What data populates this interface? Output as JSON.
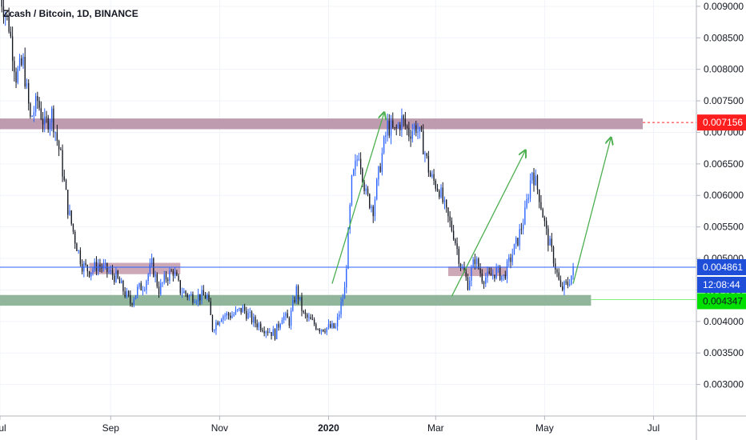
{
  "header": {
    "symbol_title": "Zcash / Bitcoin, 1D, BINANCE"
  },
  "colors": {
    "up": "#2962ff",
    "down": "#131722",
    "resistance_zone": "#b48aa2",
    "support_zone": "#7fa98a",
    "mid_zone": "#c49aaa",
    "price_line": "#2962ff",
    "red_badge": "#ff1e1e",
    "blue_badge": "#1f4fd8",
    "green_badge": "#00e000",
    "arrow": "#4caf50"
  },
  "price_badges": {
    "resistance": "0.007156",
    "last_price": "0.004861",
    "countdown": "12:08:44",
    "support": "0.004347"
  },
  "chart_data": {
    "type": "candlestick",
    "title": "Zcash / Bitcoin, 1D, BINANCE",
    "ylim": [
      0.0025,
      0.0091
    ],
    "y_ticks": [
      "0.009000",
      "0.008500",
      "0.008000",
      "0.007500",
      "0.007000",
      "0.006500",
      "0.006000",
      "0.005500",
      "0.005000",
      "0.004500",
      "0.004000",
      "0.003500",
      "0.003000"
    ],
    "x_ticks": [
      {
        "label": "Jul",
        "date": "2019-07-01",
        "bold": false
      },
      {
        "label": "Sep",
        "date": "2019-09-01",
        "bold": false
      },
      {
        "label": "Nov",
        "date": "2019-11-01",
        "bold": false
      },
      {
        "label": "2020",
        "date": "2020-01-01",
        "bold": true
      },
      {
        "label": "Mar",
        "date": "2020-03-01",
        "bold": false
      },
      {
        "label": "May",
        "date": "2020-05-01",
        "bold": false
      },
      {
        "label": "Jul",
        "date": "2020-07-01",
        "bold": false
      }
    ],
    "x_range": [
      "2019-07-01",
      "2020-07-25"
    ],
    "price_path": [
      [
        "2019-07-01",
        0.0092
      ],
      [
        "2019-07-06",
        0.0087
      ],
      [
        "2019-07-10",
        0.0079
      ],
      [
        "2019-07-14",
        0.0081
      ],
      [
        "2019-07-18",
        0.0072
      ],
      [
        "2019-07-22",
        0.0075
      ],
      [
        "2019-07-26",
        0.0071
      ],
      [
        "2019-07-30",
        0.0073
      ],
      [
        "2019-08-04",
        0.0066
      ],
      [
        "2019-08-08",
        0.0058
      ],
      [
        "2019-08-12",
        0.0053
      ],
      [
        "2019-08-16",
        0.0049
      ],
      [
        "2019-08-20",
        0.0048
      ],
      [
        "2019-08-25",
        0.0049
      ],
      [
        "2019-08-30",
        0.0048
      ],
      [
        "2019-09-04",
        0.0047
      ],
      [
        "2019-09-08",
        0.0045
      ],
      [
        "2019-09-12",
        0.0043
      ],
      [
        "2019-09-16",
        0.0045
      ],
      [
        "2019-09-20",
        0.0046
      ],
      [
        "2019-09-24",
        0.0049
      ],
      [
        "2019-09-28",
        0.0045
      ],
      [
        "2019-10-02",
        0.0047
      ],
      [
        "2019-10-06",
        0.0048
      ],
      [
        "2019-10-10",
        0.0045
      ],
      [
        "2019-10-15",
        0.0044
      ],
      [
        "2019-10-20",
        0.0044
      ],
      [
        "2019-10-25",
        0.0044
      ],
      [
        "2019-10-28",
        0.0039
      ],
      [
        "2019-11-02",
        0.0041
      ],
      [
        "2019-11-08",
        0.0041
      ],
      [
        "2019-11-14",
        0.0042
      ],
      [
        "2019-11-20",
        0.004
      ],
      [
        "2019-11-26",
        0.0039
      ],
      [
        "2019-12-02",
        0.0038
      ],
      [
        "2019-12-06",
        0.0041
      ],
      [
        "2019-12-10",
        0.004
      ],
      [
        "2019-12-14",
        0.0045
      ],
      [
        "2019-12-18",
        0.0041
      ],
      [
        "2019-12-22",
        0.004
      ],
      [
        "2019-12-27",
        0.0039
      ],
      [
        "2020-01-01",
        0.0039
      ],
      [
        "2020-01-05",
        0.0039
      ],
      [
        "2020-01-10",
        0.0045
      ],
      [
        "2020-01-14",
        0.0062
      ],
      [
        "2020-01-18",
        0.0067
      ],
      [
        "2020-01-22",
        0.006
      ],
      [
        "2020-01-26",
        0.0058
      ],
      [
        "2020-01-30",
        0.0065
      ],
      [
        "2020-02-03",
        0.0071
      ],
      [
        "2020-02-07",
        0.007
      ],
      [
        "2020-02-11",
        0.0072
      ],
      [
        "2020-02-15",
        0.007
      ],
      [
        "2020-02-19",
        0.0071
      ],
      [
        "2020-02-23",
        0.0068
      ],
      [
        "2020-02-27",
        0.0063
      ],
      [
        "2020-03-03",
        0.0061
      ],
      [
        "2020-03-07",
        0.0057
      ],
      [
        "2020-03-11",
        0.0054
      ],
      [
        "2020-03-15",
        0.0049
      ],
      [
        "2020-03-19",
        0.0046
      ],
      [
        "2020-03-23",
        0.005
      ],
      [
        "2020-03-27",
        0.0047
      ],
      [
        "2020-03-31",
        0.0047
      ],
      [
        "2020-04-04",
        0.0048
      ],
      [
        "2020-04-08",
        0.0047
      ],
      [
        "2020-04-12",
        0.005
      ],
      [
        "2020-04-16",
        0.0053
      ],
      [
        "2020-04-20",
        0.0057
      ],
      [
        "2020-04-24",
        0.0064
      ],
      [
        "2020-04-28",
        0.006
      ],
      [
        "2020-05-02",
        0.0054
      ],
      [
        "2020-05-06",
        0.005
      ],
      [
        "2020-05-10",
        0.0045
      ],
      [
        "2020-05-14",
        0.0046
      ],
      [
        "2020-05-17",
        0.0048
      ]
    ],
    "zones": [
      {
        "from": "2019-07-01",
        "to": "2020-06-25",
        "low": 0.00705,
        "high": 0.00722,
        "role": "resistance"
      },
      {
        "from": "2019-08-20",
        "to": "2019-10-10",
        "low": 0.00475,
        "high": 0.00493,
        "role": "mid"
      },
      {
        "from": "2020-03-08",
        "to": "2020-04-10",
        "low": 0.00472,
        "high": 0.00487,
        "role": "mid"
      },
      {
        "from": "2019-07-01",
        "to": "2020-05-27",
        "low": 0.00425,
        "high": 0.00442,
        "role": "support"
      }
    ],
    "arrows": [
      {
        "from": [
          "2020-01-03",
          0.0046
        ],
        "to": [
          "2020-02-01",
          0.0073
        ]
      },
      {
        "from": [
          "2020-03-10",
          0.0044
        ],
        "to": [
          "2020-04-20",
          0.0067
        ]
      },
      {
        "from": [
          "2020-05-17",
          0.0046
        ],
        "to": [
          "2020-06-07",
          0.0069
        ]
      }
    ],
    "last_price": 0.004861,
    "resistance_price": 0.007156,
    "support_price": 0.004347
  }
}
